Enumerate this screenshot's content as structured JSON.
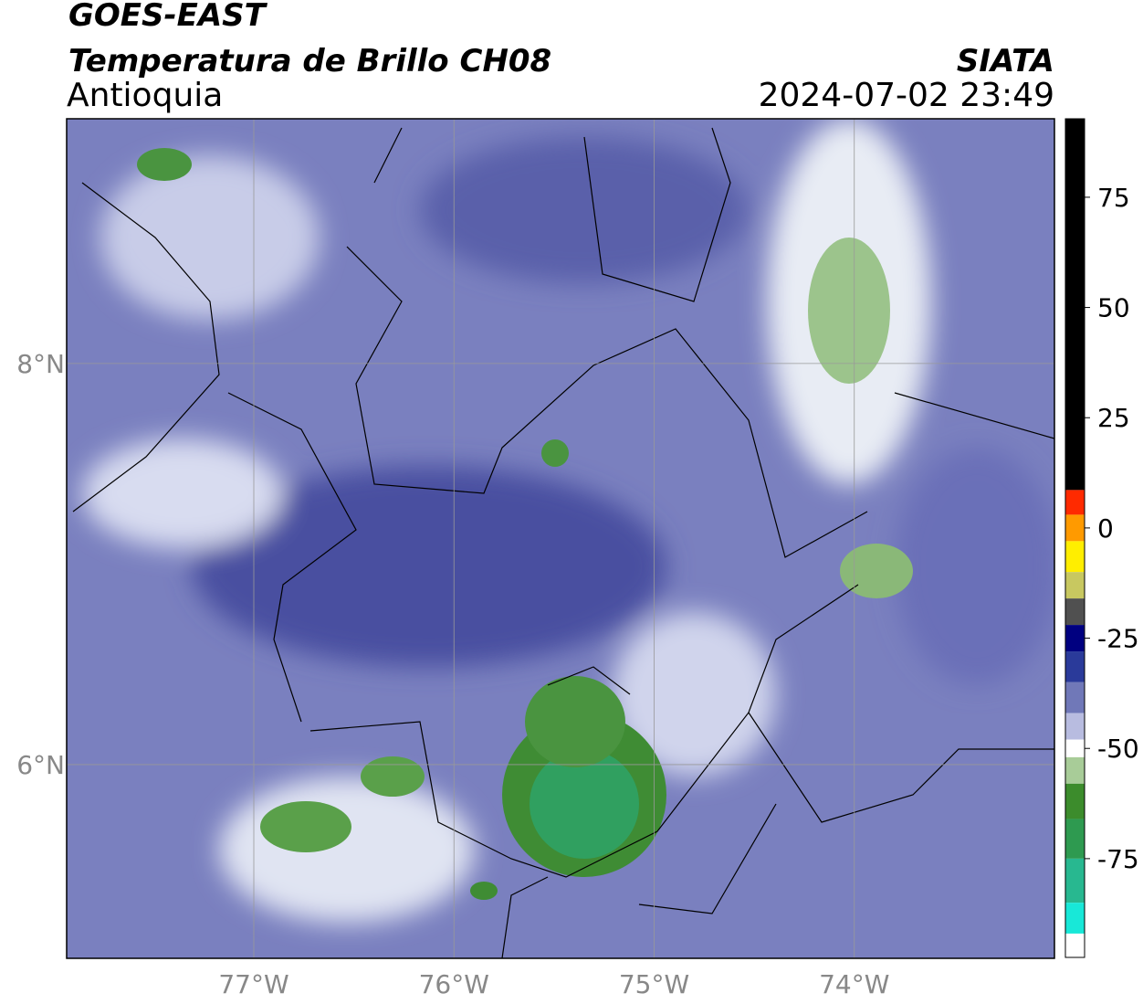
{
  "header": {
    "satellite": "GOES-EAST",
    "product": "Temperatura de Brillo CH08",
    "region": "Antioquia",
    "source": "SIATA",
    "datetime": "2024-07-02 23:49"
  },
  "map": {
    "xlim": [
      -77.935,
      -73.0
    ],
    "ylim": [
      5.034,
      9.22
    ],
    "xticks": [
      {
        "value": -77,
        "label": "77°W"
      },
      {
        "value": -76,
        "label": "76°W"
      },
      {
        "value": -75,
        "label": "75°W"
      },
      {
        "value": -74,
        "label": "74°W"
      }
    ],
    "yticks": [
      {
        "value": 8,
        "label": "8°N"
      },
      {
        "value": 6,
        "label": "6°N"
      }
    ],
    "grid": true
  },
  "colorbar": {
    "lim": [
      -97.4,
      92.8
    ],
    "ticks": [
      -75,
      -50,
      -25,
      0,
      25,
      50,
      75
    ],
    "segments": [
      {
        "from": 8.6,
        "to": 92.8,
        "color": "#000000"
      },
      {
        "from": 3,
        "to": 8.6,
        "color": "#ff2a00"
      },
      {
        "from": -3,
        "to": 3,
        "color": "#ff9a00"
      },
      {
        "from": -10,
        "to": -3,
        "color": "#ffee00"
      },
      {
        "from": -16,
        "to": -10,
        "color": "#c8c860"
      },
      {
        "from": -22,
        "to": -16,
        "color": "#505050"
      },
      {
        "from": -28,
        "to": -22,
        "color": "#000080"
      },
      {
        "from": -35,
        "to": -28,
        "color": "#2a3a9a"
      },
      {
        "from": -42,
        "to": -35,
        "color": "#7078b8"
      },
      {
        "from": -48,
        "to": -42,
        "color": "#b8bce0"
      },
      {
        "from": -52,
        "to": -48,
        "color": "#ffffff"
      },
      {
        "from": -58,
        "to": -52,
        "color": "#a8cc98"
      },
      {
        "from": -66,
        "to": -58,
        "color": "#3c8c2c"
      },
      {
        "from": -75,
        "to": -66,
        "color": "#2e9a50"
      },
      {
        "from": -85,
        "to": -75,
        "color": "#28b890"
      },
      {
        "from": -92,
        "to": -85,
        "color": "#18e8d8"
      },
      {
        "from": -97.4,
        "to": -92,
        "color": "#ffffff"
      }
    ]
  }
}
